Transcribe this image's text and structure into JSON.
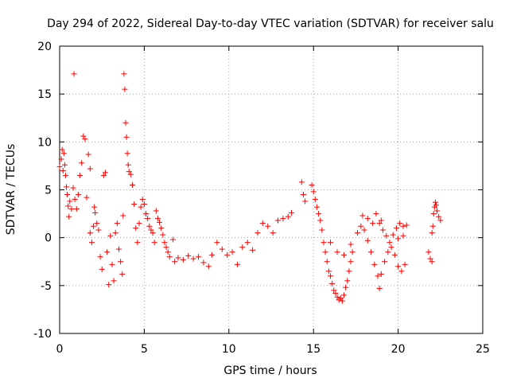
{
  "chart_data": {
    "type": "scatter",
    "title": "Day 294 of 2022, Sidereal Day-to-day VTEC variation (SDTVAR) for receiver salu",
    "xlabel": "GPS time / hours",
    "ylabel": "SDTVAR / TECUs",
    "xlim": [
      0,
      25
    ],
    "ylim": [
      -10,
      20
    ],
    "xticks": [
      0,
      5,
      10,
      15,
      20,
      25
    ],
    "yticks": [
      -10,
      -5,
      0,
      5,
      10,
      15,
      20
    ],
    "xtick_labels": [
      "0",
      "5",
      "10",
      "15",
      "20",
      "25"
    ],
    "ytick_labels": [
      "-10",
      "-5",
      "0",
      "5",
      "10",
      "15",
      "20"
    ],
    "grid": true,
    "marker": "+",
    "series": [
      {
        "name": "SDTVAR",
        "color": "#ff0000",
        "points": [
          [
            0.0,
            7.4
          ],
          [
            0.1,
            8.2
          ],
          [
            0.15,
            9.2
          ],
          [
            0.2,
            7.0
          ],
          [
            0.25,
            8.8
          ],
          [
            0.3,
            7.6
          ],
          [
            0.35,
            6.5
          ],
          [
            0.4,
            5.3
          ],
          [
            0.45,
            4.5
          ],
          [
            0.5,
            3.3
          ],
          [
            0.55,
            2.2
          ],
          [
            0.6,
            3.8
          ],
          [
            0.7,
            3.0
          ],
          [
            0.8,
            5.2
          ],
          [
            0.85,
            17.1
          ],
          [
            0.9,
            4.0
          ],
          [
            1.0,
            3.0
          ],
          [
            1.1,
            4.5
          ],
          [
            1.2,
            6.5
          ],
          [
            1.3,
            7.8
          ],
          [
            1.4,
            10.6
          ],
          [
            1.5,
            10.3
          ],
          [
            1.6,
            4.2
          ],
          [
            1.7,
            8.7
          ],
          [
            1.8,
            7.2
          ],
          [
            1.8,
            0.5
          ],
          [
            1.9,
            -0.5
          ],
          [
            2.0,
            1.2
          ],
          [
            2.05,
            3.2
          ],
          [
            2.1,
            2.6
          ],
          [
            2.2,
            1.5
          ],
          [
            2.3,
            0.8
          ],
          [
            2.4,
            -2.0
          ],
          [
            2.5,
            -3.3
          ],
          [
            2.6,
            6.5
          ],
          [
            2.7,
            6.8
          ],
          [
            2.8,
            -1.5
          ],
          [
            2.9,
            -4.9
          ],
          [
            3.0,
            0.2
          ],
          [
            3.1,
            -2.8
          ],
          [
            3.2,
            -4.5
          ],
          [
            3.3,
            0.5
          ],
          [
            3.4,
            1.5
          ],
          [
            3.5,
            -1.2
          ],
          [
            3.6,
            -2.5
          ],
          [
            3.7,
            -3.8
          ],
          [
            3.75,
            2.3
          ],
          [
            3.8,
            17.1
          ],
          [
            3.85,
            15.5
          ],
          [
            3.9,
            12.0
          ],
          [
            3.95,
            10.5
          ],
          [
            4.0,
            8.8
          ],
          [
            4.05,
            7.6
          ],
          [
            4.1,
            6.9
          ],
          [
            4.2,
            6.6
          ],
          [
            4.3,
            5.5
          ],
          [
            4.4,
            3.5
          ],
          [
            4.5,
            1.0
          ],
          [
            4.6,
            -0.5
          ],
          [
            4.7,
            1.5
          ],
          [
            4.8,
            3.2
          ],
          [
            4.9,
            4.0
          ],
          [
            5.0,
            3.5
          ],
          [
            5.1,
            2.5
          ],
          [
            5.2,
            2.0
          ],
          [
            5.3,
            1.2
          ],
          [
            5.4,
            0.8
          ],
          [
            5.5,
            0.5
          ],
          [
            5.6,
            -0.5
          ],
          [
            5.7,
            2.8
          ],
          [
            5.8,
            2.0
          ],
          [
            5.9,
            1.6
          ],
          [
            6.0,
            1.0
          ],
          [
            6.1,
            0.3
          ],
          [
            6.2,
            -0.5
          ],
          [
            6.3,
            -1.0
          ],
          [
            6.4,
            -1.5
          ],
          [
            6.5,
            -2.0
          ],
          [
            6.7,
            -0.2
          ],
          [
            6.8,
            -2.5
          ],
          [
            7.0,
            -2.1
          ],
          [
            7.3,
            -2.3
          ],
          [
            7.6,
            -1.9
          ],
          [
            7.9,
            -2.2
          ],
          [
            8.2,
            -2.0
          ],
          [
            8.5,
            -2.6
          ],
          [
            8.8,
            -3.0
          ],
          [
            9.0,
            -1.8
          ],
          [
            9.3,
            -0.5
          ],
          [
            9.6,
            -1.2
          ],
          [
            9.9,
            -1.8
          ],
          [
            10.2,
            -1.5
          ],
          [
            10.5,
            -2.8
          ],
          [
            10.8,
            -1.0
          ],
          [
            11.1,
            -0.5
          ],
          [
            11.4,
            -1.3
          ],
          [
            11.7,
            0.5
          ],
          [
            12.0,
            1.5
          ],
          [
            12.3,
            1.2
          ],
          [
            12.6,
            0.5
          ],
          [
            12.9,
            1.8
          ],
          [
            13.2,
            2.0
          ],
          [
            13.5,
            2.2
          ],
          [
            13.7,
            2.6
          ],
          [
            14.3,
            5.8
          ],
          [
            14.4,
            4.5
          ],
          [
            14.5,
            3.8
          ],
          [
            14.9,
            5.5
          ],
          [
            15.0,
            4.8
          ],
          [
            15.1,
            4.0
          ],
          [
            15.2,
            3.2
          ],
          [
            15.3,
            2.5
          ],
          [
            15.4,
            1.8
          ],
          [
            15.5,
            0.8
          ],
          [
            15.6,
            -0.5
          ],
          [
            15.7,
            -1.5
          ],
          [
            15.8,
            -2.5
          ],
          [
            15.9,
            -3.5
          ],
          [
            16.0,
            -4.0
          ],
          [
            16.1,
            -4.8
          ],
          [
            16.2,
            -5.5
          ],
          [
            16.3,
            -5.8
          ],
          [
            16.4,
            -6.2
          ],
          [
            16.5,
            -6.5
          ],
          [
            16.6,
            -6.3
          ],
          [
            16.7,
            -6.6
          ],
          [
            16.8,
            -6.0
          ],
          [
            16.9,
            -5.2
          ],
          [
            17.0,
            -4.5
          ],
          [
            17.1,
            -3.5
          ],
          [
            17.2,
            -2.5
          ],
          [
            17.3,
            -1.5
          ],
          [
            16.0,
            -0.5
          ],
          [
            16.4,
            -1.5
          ],
          [
            16.8,
            -1.8
          ],
          [
            17.2,
            -0.7
          ],
          [
            17.6,
            0.5
          ],
          [
            17.9,
            2.3
          ],
          [
            18.0,
            0.8
          ],
          [
            18.2,
            -0.3
          ],
          [
            18.4,
            -1.5
          ],
          [
            18.6,
            -2.8
          ],
          [
            18.8,
            -4.0
          ],
          [
            18.9,
            -5.3
          ],
          [
            19.0,
            -3.8
          ],
          [
            19.2,
            -2.5
          ],
          [
            19.4,
            -1.5
          ],
          [
            19.6,
            -1.0
          ],
          [
            19.8,
            -1.8
          ],
          [
            20.0,
            -3.0
          ],
          [
            20.2,
            -3.5
          ],
          [
            20.4,
            -2.8
          ],
          [
            18.7,
            2.5
          ],
          [
            18.9,
            1.5
          ],
          [
            19.1,
            0.8
          ],
          [
            19.3,
            0.2
          ],
          [
            19.5,
            -0.5
          ],
          [
            19.7,
            0.3
          ],
          [
            19.9,
            1.0
          ],
          [
            20.1,
            1.5
          ],
          [
            20.3,
            1.2
          ],
          [
            20.5,
            1.3
          ],
          [
            17.8,
            1.2
          ],
          [
            18.2,
            2.0
          ],
          [
            18.5,
            1.5
          ],
          [
            19.0,
            1.8
          ],
          [
            20.0,
            -0.1
          ],
          [
            20.3,
            0.2
          ],
          [
            21.8,
            -1.5
          ],
          [
            21.9,
            -2.2
          ],
          [
            22.0,
            -2.5
          ],
          [
            22.0,
            0.5
          ],
          [
            22.05,
            1.2
          ],
          [
            22.1,
            2.5
          ],
          [
            22.15,
            3.2
          ],
          [
            22.2,
            3.7
          ],
          [
            22.25,
            3.4
          ],
          [
            22.3,
            2.8
          ],
          [
            22.4,
            2.2
          ],
          [
            22.5,
            1.8
          ]
        ]
      }
    ]
  }
}
